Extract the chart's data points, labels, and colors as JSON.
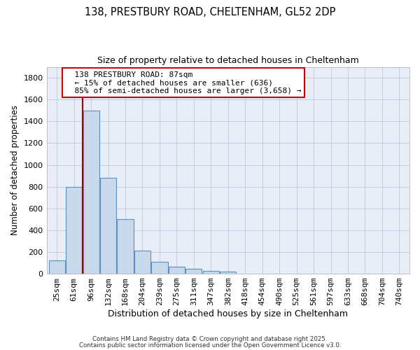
{
  "title1": "138, PRESTBURY ROAD, CHELTENHAM, GL52 2DP",
  "title2": "Size of property relative to detached houses in Cheltenham",
  "xlabel": "Distribution of detached houses by size in Cheltenham",
  "ylabel": "Number of detached properties",
  "bar_labels": [
    "25sqm",
    "61sqm",
    "96sqm",
    "132sqm",
    "168sqm",
    "204sqm",
    "239sqm",
    "275sqm",
    "311sqm",
    "347sqm",
    "382sqm",
    "418sqm",
    "454sqm",
    "490sqm",
    "525sqm",
    "561sqm",
    "597sqm",
    "633sqm",
    "668sqm",
    "704sqm",
    "740sqm"
  ],
  "bar_values": [
    120,
    800,
    1500,
    880,
    500,
    210,
    110,
    65,
    45,
    25,
    20,
    0,
    0,
    0,
    0,
    0,
    0,
    0,
    0,
    0,
    0
  ],
  "bar_color": "#c9d9ec",
  "bar_edge_color": "#5a8fc2",
  "ylim": [
    0,
    1900
  ],
  "yticks": [
    0,
    200,
    400,
    600,
    800,
    1000,
    1200,
    1400,
    1600,
    1800
  ],
  "vline_x": 1.5,
  "vline_color": "#aa0000",
  "annotation_title": "138 PRESTBURY ROAD: 87sqm",
  "annotation_line1": "← 15% of detached houses are smaller (636)",
  "annotation_line2": "85% of semi-detached houses are larger (3,658) →",
  "annotation_box_color": "#ffffff",
  "annotation_box_edge": "#cc0000",
  "footer1": "Contains HM Land Registry data © Crown copyright and database right 2025.",
  "footer2": "Contains public sector information licensed under the Open Government Licence v3.0.",
  "bg_color": "#ffffff",
  "plot_bg_color": "#e8edf8",
  "grid_color": "#c0c8d8"
}
